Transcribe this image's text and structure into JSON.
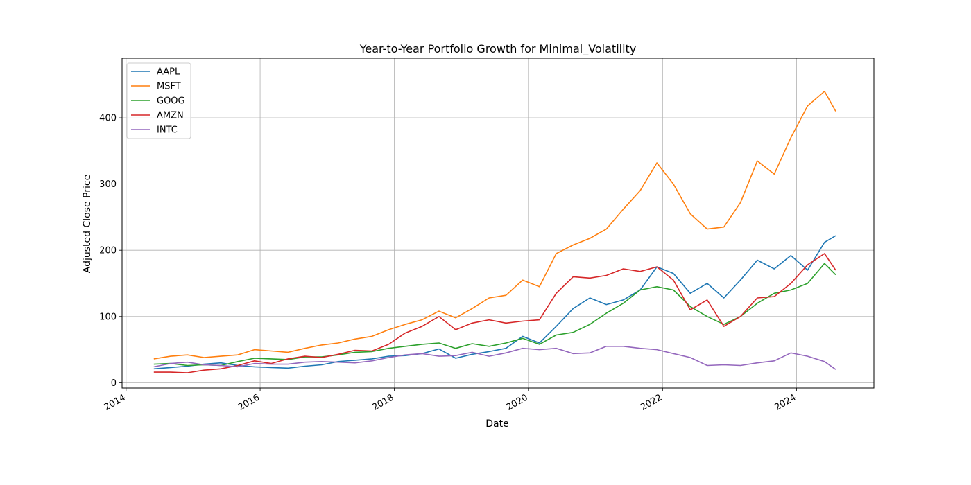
{
  "chart_data": {
    "type": "line",
    "title": "Year-to-Year Portfolio Growth for Minimal_Volatility",
    "xlabel": "Date",
    "ylabel": "Adjusted Close Price",
    "xlim": [
      "2013-12-10",
      "2025-02-25"
    ],
    "ylim": [
      -8,
      490
    ],
    "x_ticks": [
      "2014",
      "2016",
      "2018",
      "2020",
      "2022",
      "2024"
    ],
    "y_ticks": [
      0,
      100,
      200,
      300,
      400
    ],
    "grid": true,
    "legend_position": "upper left",
    "series": [
      {
        "name": "AAPL",
        "color": "#1f77b4",
        "x": [
          "2014-06",
          "2014-09",
          "2014-12",
          "2015-03",
          "2015-06",
          "2015-09",
          "2015-12",
          "2016-03",
          "2016-06",
          "2016-09",
          "2016-12",
          "2017-03",
          "2017-06",
          "2017-09",
          "2017-12",
          "2018-03",
          "2018-06",
          "2018-09",
          "2018-12",
          "2019-03",
          "2019-06",
          "2019-09",
          "2019-12",
          "2020-03",
          "2020-06",
          "2020-09",
          "2020-12",
          "2021-03",
          "2021-06",
          "2021-09",
          "2021-12",
          "2022-03",
          "2022-06",
          "2022-09",
          "2022-12",
          "2023-03",
          "2023-06",
          "2023-09",
          "2023-12",
          "2024-03",
          "2024-06",
          "2024-08"
        ],
        "values": [
          21,
          23,
          25,
          28,
          30,
          26,
          24,
          23,
          22,
          25,
          27,
          32,
          34,
          36,
          40,
          41,
          44,
          51,
          37,
          43,
          47,
          52,
          70,
          60,
          85,
          112,
          128,
          118,
          125,
          140,
          175,
          165,
          135,
          150,
          128,
          155,
          185,
          172,
          192,
          170,
          212,
          222
        ]
      },
      {
        "name": "MSFT",
        "color": "#ff7f0e",
        "x": [
          "2014-06",
          "2014-09",
          "2014-12",
          "2015-03",
          "2015-06",
          "2015-09",
          "2015-12",
          "2016-03",
          "2016-06",
          "2016-09",
          "2016-12",
          "2017-03",
          "2017-06",
          "2017-09",
          "2017-12",
          "2018-03",
          "2018-06",
          "2018-09",
          "2018-12",
          "2019-03",
          "2019-06",
          "2019-09",
          "2019-12",
          "2020-03",
          "2020-06",
          "2020-09",
          "2020-12",
          "2021-03",
          "2021-06",
          "2021-09",
          "2021-12",
          "2022-03",
          "2022-06",
          "2022-09",
          "2022-12",
          "2023-03",
          "2023-06",
          "2023-09",
          "2023-12",
          "2024-03",
          "2024-06",
          "2024-08"
        ],
        "values": [
          36,
          40,
          42,
          38,
          40,
          42,
          50,
          48,
          46,
          52,
          57,
          60,
          66,
          70,
          80,
          88,
          95,
          108,
          98,
          112,
          128,
          132,
          155,
          145,
          195,
          208,
          218,
          232,
          262,
          290,
          332,
          300,
          255,
          232,
          235,
          272,
          335,
          315,
          370,
          418,
          440,
          410
        ]
      },
      {
        "name": "GOOG",
        "color": "#2ca02c",
        "x": [
          "2014-06",
          "2014-09",
          "2014-12",
          "2015-03",
          "2015-06",
          "2015-09",
          "2015-12",
          "2016-03",
          "2016-06",
          "2016-09",
          "2016-12",
          "2017-03",
          "2017-06",
          "2017-09",
          "2017-12",
          "2018-03",
          "2018-06",
          "2018-09",
          "2018-12",
          "2019-03",
          "2019-06",
          "2019-09",
          "2019-12",
          "2020-03",
          "2020-06",
          "2020-09",
          "2020-12",
          "2021-03",
          "2021-06",
          "2021-09",
          "2021-12",
          "2022-03",
          "2022-06",
          "2022-09",
          "2022-12",
          "2023-03",
          "2023-06",
          "2023-09",
          "2023-12",
          "2024-03",
          "2024-06",
          "2024-08"
        ],
        "values": [
          28,
          29,
          26,
          27,
          26,
          32,
          37,
          36,
          35,
          39,
          39,
          42,
          46,
          47,
          52,
          55,
          58,
          60,
          52,
          59,
          55,
          60,
          67,
          58,
          72,
          76,
          88,
          105,
          120,
          140,
          145,
          140,
          115,
          100,
          88,
          100,
          120,
          135,
          140,
          150,
          180,
          163
        ]
      },
      {
        "name": "AMZN",
        "color": "#d62728",
        "x": [
          "2014-06",
          "2014-09",
          "2014-12",
          "2015-03",
          "2015-06",
          "2015-09",
          "2015-12",
          "2016-03",
          "2016-06",
          "2016-09",
          "2016-12",
          "2017-03",
          "2017-06",
          "2017-09",
          "2017-12",
          "2018-03",
          "2018-06",
          "2018-09",
          "2018-12",
          "2019-03",
          "2019-06",
          "2019-09",
          "2019-12",
          "2020-03",
          "2020-06",
          "2020-09",
          "2020-12",
          "2021-03",
          "2021-06",
          "2021-09",
          "2021-12",
          "2022-03",
          "2022-06",
          "2022-09",
          "2022-12",
          "2023-03",
          "2023-06",
          "2023-09",
          "2023-12",
          "2024-03",
          "2024-06",
          "2024-08"
        ],
        "values": [
          16,
          16,
          15,
          19,
          21,
          26,
          33,
          29,
          36,
          40,
          38,
          43,
          49,
          48,
          58,
          75,
          85,
          100,
          80,
          90,
          95,
          90,
          93,
          95,
          135,
          160,
          158,
          162,
          172,
          168,
          175,
          155,
          110,
          125,
          85,
          100,
          128,
          130,
          150,
          178,
          195,
          170
        ]
      },
      {
        "name": "INTC",
        "color": "#9467bd",
        "x": [
          "2014-06",
          "2014-09",
          "2014-12",
          "2015-03",
          "2015-06",
          "2015-09",
          "2015-12",
          "2016-03",
          "2016-06",
          "2016-09",
          "2016-12",
          "2017-03",
          "2017-06",
          "2017-09",
          "2017-12",
          "2018-03",
          "2018-06",
          "2018-09",
          "2018-12",
          "2019-03",
          "2019-06",
          "2019-09",
          "2019-12",
          "2020-03",
          "2020-06",
          "2020-09",
          "2020-12",
          "2021-03",
          "2021-06",
          "2021-09",
          "2021-12",
          "2022-03",
          "2022-06",
          "2022-09",
          "2022-12",
          "2023-03",
          "2023-06",
          "2023-09",
          "2023-12",
          "2024-03",
          "2024-06",
          "2024-08"
        ],
        "values": [
          24,
          29,
          31,
          27,
          26,
          24,
          29,
          28,
          28,
          31,
          32,
          31,
          30,
          33,
          38,
          42,
          44,
          40,
          41,
          46,
          40,
          45,
          52,
          50,
          52,
          44,
          45,
          55,
          55,
          52,
          50,
          44,
          38,
          26,
          27,
          26,
          30,
          33,
          45,
          40,
          32,
          20
        ]
      }
    ]
  }
}
